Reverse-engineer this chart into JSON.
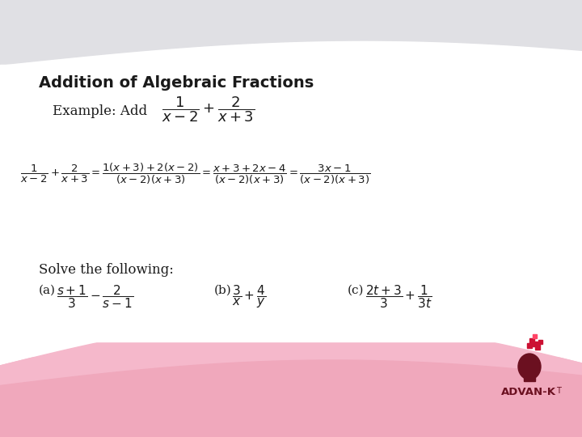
{
  "title": "Addition of Algebraic Fractions",
  "bg_top_color": "#e0e0e4",
  "bg_pink_color": "#f5b8cb",
  "title_fontsize": 14,
  "text_color": "#1a1a1a",
  "example_label": "Example: Add",
  "example_formula": "$\\dfrac{1}{x-2}+\\dfrac{2}{x+3}$",
  "solution_line": "$\\dfrac{1}{x-2}+\\dfrac{2}{x+3}=\\dfrac{1(x+3)+2(x-2)}{(x-2)(x+3)}=\\dfrac{x+3+2x-4}{(x-2)(x+3)}=\\dfrac{3x-1}{(x-2)(x+3)}$",
  "solve_label": "Solve the following:",
  "part_a_label": "(a)",
  "part_a_formula": "$\\dfrac{s+1}{3}-\\dfrac{2}{s-1}$",
  "part_b_label": "(b)",
  "part_b_formula": "$\\dfrac{3}{x}+\\dfrac{4}{y}$",
  "part_c_label": "(c)",
  "part_c_formula": "$\\dfrac{2t+3}{3}+\\dfrac{1}{3t}$",
  "logo_text": "ADVAN-K",
  "logo_color": "#6b1020"
}
